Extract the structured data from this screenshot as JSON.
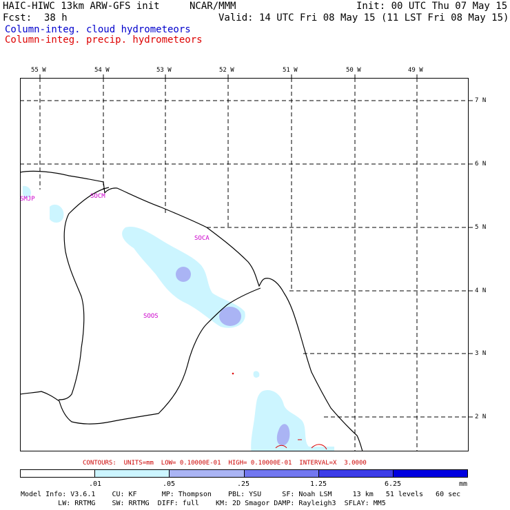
{
  "header": {
    "model": "HAIC-HIWC 13km ARW-GFS init",
    "org": "NCAR/MMM",
    "init": "Init: 00 UTC Thu 07 May 15",
    "fcst_label": "Fcst:",
    "fcst_value": "38 h",
    "valid": "Valid: 14 UTC Fri 08 May 15 (11 LST Fri 08 May 15)",
    "field1": "Column-integ. cloud hydrometeors",
    "field2": "Column-integ. precip. hydrometeors",
    "field1_color": "#0000cc",
    "field2_color": "#dd0000"
  },
  "map": {
    "lon_labels": [
      "55 W",
      "54 W",
      "53 W",
      "52 W",
      "51 W",
      "50 W",
      "49 W"
    ],
    "lat_labels": [
      "7 N",
      "6 N",
      "5 N",
      "4 N",
      "3 N",
      "2 N"
    ],
    "stations": [
      {
        "id": "SMJP"
      },
      {
        "id": "SOCM"
      },
      {
        "id": "SOCA"
      },
      {
        "id": "SOOS"
      }
    ]
  },
  "contours": {
    "text": "CONTOURS:  UNITS=mm  LOW= 0.10000E-01  HIGH= 0.10000E-01  INTERVAL=X  3.0000",
    "color": "#cc0000"
  },
  "colorbar": {
    "colors": [
      "#ffffff",
      "#ccf5ff",
      "#aab4f4",
      "#7277f0",
      "#3c3ce8",
      "#0000e0"
    ],
    "labels": [
      ".01",
      ".05",
      ".25",
      "1.25",
      "6.25"
    ],
    "unit": "mm"
  },
  "footer": {
    "line1": "Model Info: V3.6.1    CU: KF      MP: Thompson    PBL: YSU     SF: Noah LSM     13 km   51 levels   60 sec",
    "line2": "         LW: RRTMG    SW: RRTMG  DIFF: full    KM: 2D Smagor DAMP: Rayleigh3  SFLAY: MM5"
  }
}
